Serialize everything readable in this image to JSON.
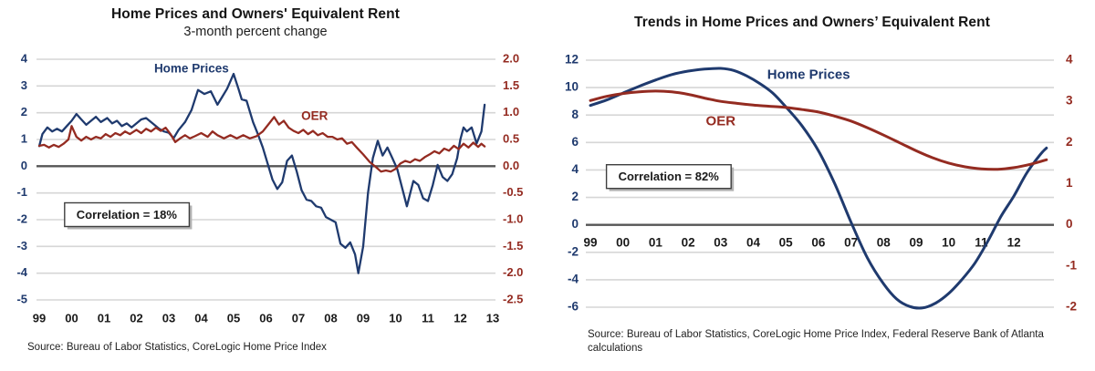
{
  "page": {
    "background": "#ffffff"
  },
  "colors": {
    "home_prices": "#1f3a6e",
    "oer": "#942b21",
    "grid": "#d6d6d6",
    "zero_line": "#555555",
    "axis_text": "#1a1a1a",
    "box_border": "#3f3f3f",
    "box_shadow": "#b3b3b3",
    "box_fill": "#ffffff"
  },
  "chart_data": [
    {
      "type": "line",
      "title": "Home Prices and Owners' Equivalent Rent",
      "subtitle": "3-month percent change",
      "source": "Source: Bureau of Labor Statistics, CoreLogic Home Price Index",
      "correlation": "Correlation = 18%",
      "xlim": [
        1999,
        2013
      ],
      "ylim_left": [
        -5,
        4
      ],
      "ylim_right": [
        -2.5,
        2.0
      ],
      "grid": true,
      "legend": "inline-labels",
      "left_ticks": [
        {
          "label": "4",
          "at": 4
        },
        {
          "label": "3",
          "at": 3
        },
        {
          "label": "2",
          "at": 2
        },
        {
          "label": "1",
          "at": 1
        },
        {
          "label": "0",
          "at": 0
        },
        {
          "label": "-1",
          "at": -1
        },
        {
          "label": "-2",
          "at": -2
        },
        {
          "label": "-3",
          "at": -3
        },
        {
          "label": "-4",
          "at": -4
        },
        {
          "label": "-5",
          "at": -5
        }
      ],
      "right_ticks": [
        {
          "label": "2.0",
          "at": 4
        },
        {
          "label": "1.5",
          "at": 3
        },
        {
          "label": "1.0",
          "at": 2
        },
        {
          "label": "0.5",
          "at": 1
        },
        {
          "label": "0.0",
          "at": 0
        },
        {
          "label": "-0.5",
          "at": -1
        },
        {
          "label": "-1.0",
          "at": -2
        },
        {
          "label": "-1.5",
          "at": -3
        },
        {
          "label": "-2.0",
          "at": -4
        },
        {
          "label": "-2.5",
          "at": -5
        }
      ],
      "x_ticks": [
        {
          "label": "99",
          "at": 1999
        },
        {
          "label": "00",
          "at": 2000
        },
        {
          "label": "01",
          "at": 2001
        },
        {
          "label": "02",
          "at": 2002
        },
        {
          "label": "03",
          "at": 2003
        },
        {
          "label": "04",
          "at": 2004
        },
        {
          "label": "05",
          "at": 2005
        },
        {
          "label": "06",
          "at": 2006
        },
        {
          "label": "07",
          "at": 2007
        },
        {
          "label": "08",
          "at": 2008
        },
        {
          "label": "09",
          "at": 2009
        },
        {
          "label": "10",
          "at": 2010
        },
        {
          "label": "11",
          "at": 2011
        },
        {
          "label": "12",
          "at": 2012
        },
        {
          "label": "13",
          "at": 2013
        }
      ],
      "series": [
        {
          "name": "Home Prices",
          "axis": "left",
          "color": "home_prices",
          "x": [
            1999.0,
            1999.1,
            1999.25,
            1999.4,
            1999.55,
            1999.7,
            1999.85,
            2000.0,
            2000.15,
            2000.3,
            2000.45,
            2000.6,
            2000.75,
            2000.9,
            2001.1,
            2001.25,
            2001.4,
            2001.55,
            2001.7,
            2001.85,
            2002.0,
            2002.15,
            2002.3,
            2002.5,
            2002.7,
            2002.85,
            2003.0,
            2003.15,
            2003.3,
            2003.5,
            2003.7,
            2003.9,
            2004.1,
            2004.3,
            2004.5,
            2004.65,
            2004.8,
            2005.0,
            2005.15,
            2005.25,
            2005.4,
            2005.6,
            2005.75,
            2005.9,
            2006.05,
            2006.2,
            2006.35,
            2006.5,
            2006.65,
            2006.8,
            2006.95,
            2007.1,
            2007.25,
            2007.4,
            2007.55,
            2007.7,
            2007.85,
            2008.0,
            2008.15,
            2008.3,
            2008.45,
            2008.6,
            2008.75,
            2008.85,
            2009.0,
            2009.15,
            2009.3,
            2009.45,
            2009.6,
            2009.75,
            2009.9,
            2010.05,
            2010.2,
            2010.35,
            2010.55,
            2010.7,
            2010.85,
            2011.0,
            2011.15,
            2011.3,
            2011.45,
            2011.6,
            2011.75,
            2011.9,
            2012.0,
            2012.1,
            2012.2,
            2012.35,
            2012.5,
            2012.65,
            2012.75
          ],
          "values": [
            0.75,
            1.2,
            1.45,
            1.3,
            1.4,
            1.3,
            1.5,
            1.7,
            1.95,
            1.75,
            1.55,
            1.7,
            1.85,
            1.65,
            1.8,
            1.6,
            1.7,
            1.5,
            1.6,
            1.45,
            1.6,
            1.75,
            1.8,
            1.6,
            1.4,
            1.3,
            1.25,
            1.05,
            1.35,
            1.65,
            2.1,
            2.85,
            2.7,
            2.8,
            2.3,
            2.6,
            2.9,
            3.45,
            2.9,
            2.5,
            2.45,
            1.65,
            1.2,
            0.7,
            0.1,
            -0.5,
            -0.85,
            -0.6,
            0.2,
            0.4,
            -0.2,
            -0.9,
            -1.25,
            -1.3,
            -1.5,
            -1.55,
            -1.9,
            -2.0,
            -2.1,
            -2.9,
            -3.05,
            -2.85,
            -3.3,
            -4.0,
            -3.0,
            -1.0,
            0.3,
            0.95,
            0.4,
            0.7,
            0.3,
            -0.1,
            -0.8,
            -1.5,
            -0.55,
            -0.7,
            -1.2,
            -1.3,
            -0.7,
            0.05,
            -0.4,
            -0.55,
            -0.3,
            0.3,
            1.0,
            1.45,
            1.3,
            1.45,
            0.85,
            1.3,
            2.3
          ]
        },
        {
          "name": "OER",
          "axis": "right",
          "color": "oer",
          "x": [
            1999.0,
            1999.15,
            1999.3,
            1999.45,
            1999.6,
            1999.75,
            1999.9,
            2000.0,
            2000.15,
            2000.3,
            2000.45,
            2000.6,
            2000.75,
            2000.9,
            2001.05,
            2001.2,
            2001.35,
            2001.5,
            2001.65,
            2001.8,
            2002.0,
            2002.15,
            2002.3,
            2002.45,
            2002.6,
            2002.75,
            2002.9,
            2003.05,
            2003.2,
            2003.35,
            2003.5,
            2003.65,
            2003.8,
            2004.0,
            2004.2,
            2004.35,
            2004.5,
            2004.7,
            2004.9,
            2005.1,
            2005.3,
            2005.5,
            2005.7,
            2005.9,
            2006.1,
            2006.25,
            2006.4,
            2006.55,
            2006.7,
            2006.85,
            2007.0,
            2007.15,
            2007.3,
            2007.45,
            2007.6,
            2007.75,
            2007.9,
            2008.05,
            2008.2,
            2008.35,
            2008.5,
            2008.65,
            2008.8,
            2009.0,
            2009.2,
            2009.4,
            2009.55,
            2009.7,
            2009.85,
            2010.0,
            2010.15,
            2010.3,
            2010.45,
            2010.6,
            2010.75,
            2010.9,
            2011.05,
            2011.2,
            2011.35,
            2011.5,
            2011.65,
            2011.8,
            2011.95,
            2012.1,
            2012.25,
            2012.4,
            2012.55,
            2012.65,
            2012.75
          ],
          "values": [
            0.38,
            0.4,
            0.35,
            0.4,
            0.36,
            0.42,
            0.5,
            0.75,
            0.55,
            0.48,
            0.55,
            0.5,
            0.55,
            0.52,
            0.6,
            0.55,
            0.62,
            0.58,
            0.65,
            0.6,
            0.68,
            0.62,
            0.7,
            0.65,
            0.72,
            0.66,
            0.72,
            0.6,
            0.45,
            0.52,
            0.58,
            0.52,
            0.56,
            0.62,
            0.55,
            0.65,
            0.58,
            0.52,
            0.58,
            0.52,
            0.58,
            0.52,
            0.56,
            0.65,
            0.8,
            0.92,
            0.78,
            0.85,
            0.72,
            0.66,
            0.62,
            0.68,
            0.6,
            0.66,
            0.58,
            0.62,
            0.55,
            0.55,
            0.5,
            0.52,
            0.42,
            0.45,
            0.35,
            0.22,
            0.08,
            -0.02,
            -0.1,
            -0.08,
            -0.1,
            -0.05,
            0.05,
            0.1,
            0.07,
            0.13,
            0.1,
            0.17,
            0.22,
            0.28,
            0.24,
            0.33,
            0.29,
            0.38,
            0.32,
            0.42,
            0.35,
            0.44,
            0.36,
            0.42,
            0.37
          ]
        }
      ],
      "annotations": [
        {
          "type": "series-label",
          "text": "Home Prices",
          "x": 2003.7,
          "y": 3.62,
          "color": "home_prices"
        },
        {
          "type": "series-label",
          "text": "OER",
          "x": 2007.5,
          "y": 1.85,
          "color": "oer"
        },
        {
          "type": "callout",
          "text": "Correlation = 18%",
          "x": 2001.7,
          "y": -1.85
        }
      ]
    },
    {
      "type": "line",
      "title": "Trends in Home Prices and Owners’ Equivalent Rent",
      "source": "Source: Bureau of Labor Statistics, CoreLogic Home Price Index, Federal Reserve Bank of Atlanta calculations",
      "correlation": "Correlation = 82%",
      "xlim": [
        1999,
        2013
      ],
      "ylim_left": [
        -6,
        12
      ],
      "ylim_right": [
        -2,
        4
      ],
      "grid": true,
      "legend": "inline-labels",
      "left_ticks": [
        {
          "label": "12",
          "at": 12
        },
        {
          "label": "10",
          "at": 10
        },
        {
          "label": "8",
          "at": 8
        },
        {
          "label": "6",
          "at": 6
        },
        {
          "label": "4",
          "at": 4
        },
        {
          "label": "2",
          "at": 2
        },
        {
          "label": "0",
          "at": 0
        },
        {
          "label": "-2",
          "at": -2
        },
        {
          "label": "-4",
          "at": -4
        },
        {
          "label": "-6",
          "at": -6
        }
      ],
      "right_ticks": [
        {
          "label": "4",
          "at": 12
        },
        {
          "label": "3",
          "at": 9
        },
        {
          "label": "2",
          "at": 6
        },
        {
          "label": "1",
          "at": 3
        },
        {
          "label": "0",
          "at": 0
        },
        {
          "label": "-1",
          "at": -3
        },
        {
          "label": "-2",
          "at": -6
        }
      ],
      "x_ticks": [
        {
          "label": "99",
          "at": 1999
        },
        {
          "label": "00",
          "at": 2000
        },
        {
          "label": "01",
          "at": 2001
        },
        {
          "label": "02",
          "at": 2002
        },
        {
          "label": "03",
          "at": 2003
        },
        {
          "label": "04",
          "at": 2004
        },
        {
          "label": "05",
          "at": 2005
        },
        {
          "label": "06",
          "at": 2006
        },
        {
          "label": "07",
          "at": 2007
        },
        {
          "label": "08",
          "at": 2008
        },
        {
          "label": "09",
          "at": 2009
        },
        {
          "label": "10",
          "at": 2010
        },
        {
          "label": "11",
          "at": 2011
        },
        {
          "label": "12",
          "at": 2012
        }
      ],
      "series": [
        {
          "name": "Home Prices",
          "axis": "left",
          "color": "home_prices",
          "x": [
            1999.0,
            1999.5,
            2000.0,
            2000.5,
            2001.0,
            2001.5,
            2002.0,
            2002.5,
            2003.0,
            2003.4,
            2003.8,
            2004.2,
            2004.6,
            2005.0,
            2005.5,
            2006.0,
            2006.5,
            2007.0,
            2007.5,
            2008.0,
            2008.4,
            2008.8,
            2009.2,
            2009.6,
            2010.0,
            2010.4,
            2010.8,
            2011.2,
            2011.6,
            2012.0,
            2012.4,
            2012.8,
            2013.0
          ],
          "values": [
            8.7,
            9.1,
            9.6,
            10.1,
            10.55,
            10.95,
            11.2,
            11.35,
            11.4,
            11.25,
            10.85,
            10.3,
            9.6,
            8.6,
            7.2,
            5.4,
            3.0,
            0.2,
            -2.4,
            -4.3,
            -5.4,
            -5.95,
            -6.05,
            -5.7,
            -5.0,
            -4.0,
            -2.8,
            -1.2,
            0.6,
            2.1,
            3.8,
            5.1,
            5.6
          ]
        },
        {
          "name": "OER",
          "axis": "right",
          "color": "oer",
          "x": [
            1999.0,
            1999.5,
            2000.0,
            2000.5,
            2001.0,
            2001.5,
            2002.0,
            2002.5,
            2003.0,
            2003.5,
            2004.0,
            2004.5,
            2005.0,
            2005.5,
            2006.0,
            2006.5,
            2007.0,
            2007.5,
            2008.0,
            2008.5,
            2009.0,
            2009.5,
            2010.0,
            2010.5,
            2011.0,
            2011.5,
            2012.0,
            2012.5,
            2013.0
          ],
          "values": [
            3.02,
            3.12,
            3.19,
            3.23,
            3.25,
            3.23,
            3.17,
            3.08,
            3.0,
            2.95,
            2.91,
            2.88,
            2.85,
            2.8,
            2.74,
            2.64,
            2.52,
            2.36,
            2.18,
            1.99,
            1.8,
            1.63,
            1.5,
            1.41,
            1.36,
            1.35,
            1.39,
            1.47,
            1.58
          ]
        }
      ],
      "annotations": [
        {
          "type": "series-label",
          "text": "Home Prices",
          "x": 2005.7,
          "y": 10.9,
          "color": "home_prices"
        },
        {
          "type": "series-label",
          "text": "OER",
          "x": 2003.0,
          "y": 7.5,
          "color": "oer"
        },
        {
          "type": "callout",
          "text": "Correlation = 82%",
          "x": 2001.4,
          "y": 3.45
        }
      ]
    }
  ]
}
